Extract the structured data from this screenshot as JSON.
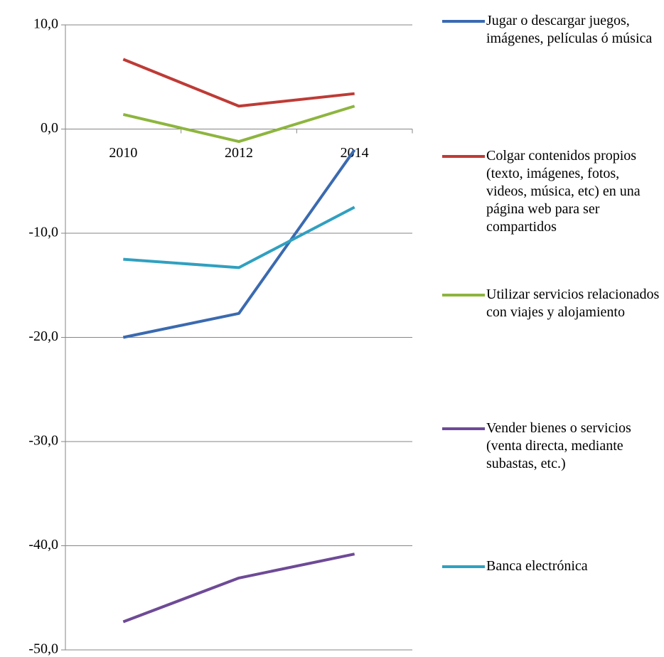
{
  "chart_data": {
    "type": "line",
    "categories": [
      "2010",
      "2012",
      "2014"
    ],
    "series": [
      {
        "name": "Jugar o descargar juegos, imágenes, películas ó música",
        "color": "#3a6ab0",
        "values": [
          -20.0,
          -17.7,
          -2.0
        ]
      },
      {
        "name": "Colgar contenidos propios (texto, imágenes, fotos, videos, música, etc) en una página web para ser compartidos",
        "color": "#be3b36",
        "values": [
          6.7,
          2.2,
          3.4
        ]
      },
      {
        "name": "Utilizar servicios relacionados con viajes y alojamiento",
        "color": "#8db53e",
        "values": [
          1.4,
          -1.2,
          2.2
        ]
      },
      {
        "name": "Vender bienes o servicios (venta directa, mediante subastas, etc.)",
        "color": "#6e4a96",
        "values": [
          -47.3,
          -43.1,
          -40.8
        ]
      },
      {
        "name": "Banca electrónica",
        "color": "#30a0c0",
        "values": [
          -12.5,
          -13.3,
          -7.5
        ]
      }
    ],
    "ylim": [
      -50,
      10
    ],
    "yticks": [
      {
        "value": -50,
        "label": "-50,0"
      },
      {
        "value": -40,
        "label": "-40,0"
      },
      {
        "value": -30,
        "label": "-30,0"
      },
      {
        "value": -20,
        "label": "-20,0"
      },
      {
        "value": -10,
        "label": "-10,0"
      },
      {
        "value": 0,
        "label": "0,0"
      },
      {
        "value": 10,
        "label": "10,0"
      }
    ],
    "grid": true,
    "legend": "right"
  }
}
